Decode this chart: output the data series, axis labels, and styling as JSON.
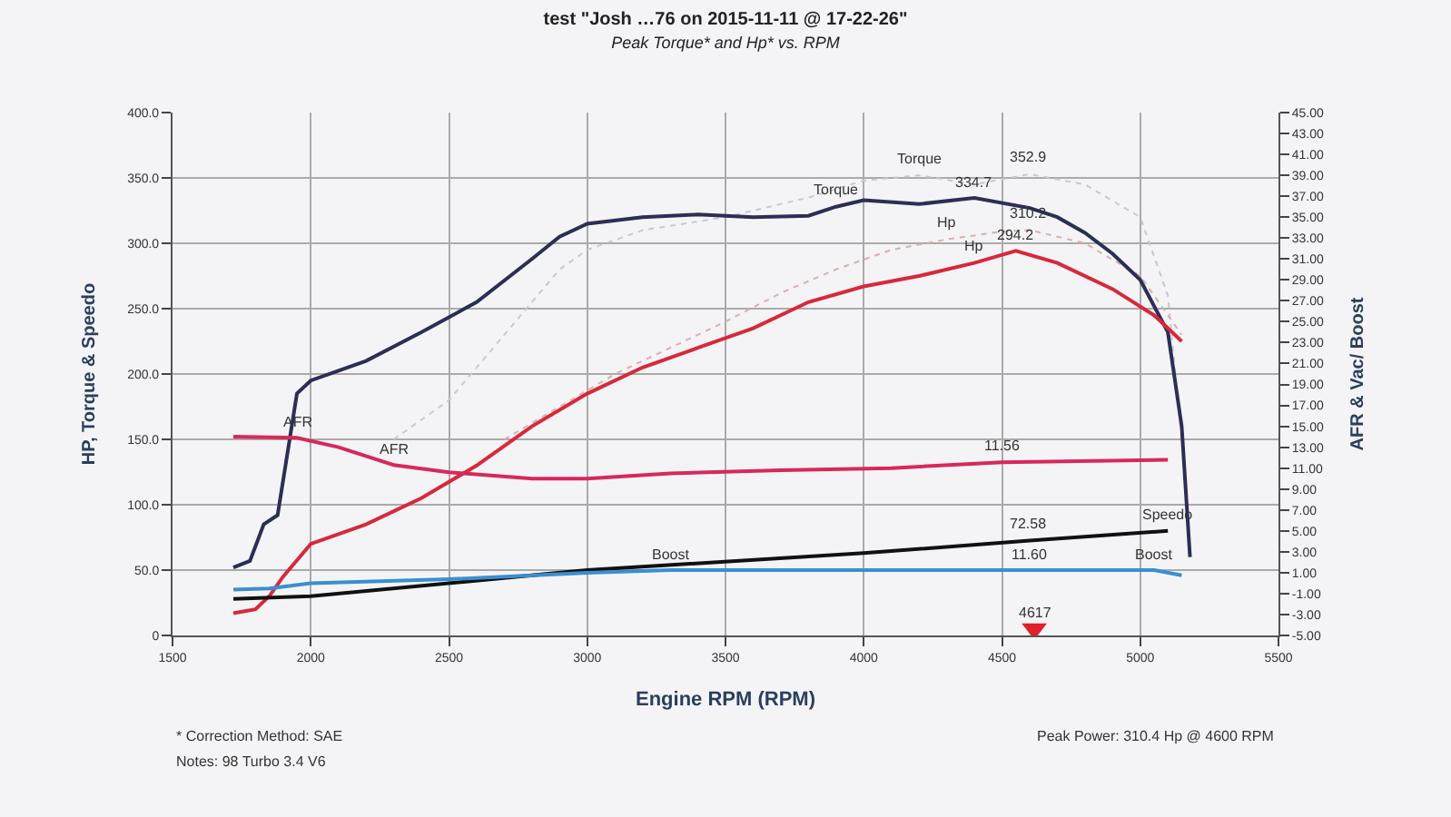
{
  "chart_data": {
    "type": "line",
    "title": "test \"Josh …76 on 2015-11-11 @ 17-22-26\"",
    "subtitle": "Peak Torque* and Hp* vs. RPM",
    "xlabel": "Engine RPM (RPM)",
    "ylabel": "HP, Torque & Speedo",
    "y2label": "AFR & Vac/ Boost",
    "xlim": [
      1500,
      5500
    ],
    "xticks": [
      1500,
      2000,
      2500,
      3000,
      3500,
      4000,
      4500,
      5000,
      5500
    ],
    "ylim": [
      0,
      400
    ],
    "yticks": [
      {
        "value": 0,
        "label": "0"
      },
      {
        "value": 50,
        "label": "50.0"
      },
      {
        "value": 100,
        "label": "100.0"
      },
      {
        "value": 150,
        "label": "150.0"
      },
      {
        "value": 200,
        "label": "200.0"
      },
      {
        "value": 250,
        "label": "250.0"
      },
      {
        "value": 300,
        "label": "300.0"
      },
      {
        "value": 350,
        "label": "350.0"
      },
      {
        "value": 400,
        "label": "400.0"
      }
    ],
    "y2lim": [
      -5,
      45
    ],
    "y2ticks": [
      {
        "value": -5,
        "label": "-5.00"
      },
      {
        "value": -3,
        "label": "-3.00"
      },
      {
        "value": -1,
        "label": "-1.00"
      },
      {
        "value": 1,
        "label": "1.00"
      },
      {
        "value": 3,
        "label": "3.00"
      },
      {
        "value": 5,
        "label": "5.00"
      },
      {
        "value": 7,
        "label": "7.00"
      },
      {
        "value": 9,
        "label": "9.00"
      },
      {
        "value": 11,
        "label": "11.00"
      },
      {
        "value": 13,
        "label": "13.00"
      },
      {
        "value": 15,
        "label": "15.00"
      },
      {
        "value": 17,
        "label": "17.00"
      },
      {
        "value": 19,
        "label": "19.00"
      },
      {
        "value": 21,
        "label": "21.00"
      },
      {
        "value": 23,
        "label": "23.00"
      },
      {
        "value": 25,
        "label": "25.00"
      },
      {
        "value": 27,
        "label": "27.00"
      },
      {
        "value": 29,
        "label": "29.00"
      },
      {
        "value": 31,
        "label": "31.00"
      },
      {
        "value": 33,
        "label": "33.00"
      },
      {
        "value": 35,
        "label": "35.00"
      },
      {
        "value": 37,
        "label": "37.00"
      },
      {
        "value": 39,
        "label": "39.00"
      },
      {
        "value": 41,
        "label": "41.00"
      },
      {
        "value": 43,
        "label": "43.00"
      },
      {
        "value": 45,
        "label": "45.00"
      }
    ],
    "grid": true,
    "line_style": "solid",
    "series": [
      {
        "color": "#c8c8d0",
        "line_style": "dotted",
        "x": [
          2300,
          2500,
          2700,
          2900,
          3000,
          3200,
          3500,
          3800,
          4000,
          4200,
          4400,
          4600,
          4800,
          5000,
          5100,
          5150
        ],
        "values": [
          150,
          180,
          230,
          280,
          295,
          310,
          320,
          335,
          348,
          352,
          345,
          352.9,
          345,
          320,
          260,
          150
        ]
      },
      {
        "color": "#d8b0b0",
        "line_style": "dotted",
        "x": [
          2700,
          2900,
          3100,
          3300,
          3500,
          3700,
          3900,
          4100,
          4300,
          4500,
          4600,
          4800,
          5000,
          5150
        ],
        "values": [
          150,
          175,
          200,
          220,
          240,
          262,
          280,
          295,
          303,
          309,
          310.2,
          300,
          275,
          230
        ]
      },
      {
        "color": "#2a2f55",
        "x": [
          1720,
          1780,
          1830,
          1880,
          1950,
          2000,
          2200,
          2400,
          2600,
          2800,
          2900,
          3000,
          3200,
          3400,
          3600,
          3800,
          3900,
          4000,
          4200,
          4400,
          4600,
          4700,
          4800,
          4900,
          5000,
          5100,
          5150,
          5180
        ],
        "values": [
          52,
          57,
          85,
          92,
          185,
          195,
          210,
          232,
          255,
          288,
          305,
          315,
          320,
          322,
          320,
          321,
          328,
          333,
          330,
          334.7,
          327,
          320,
          308,
          292,
          272,
          232,
          160,
          60
        ]
      },
      {
        "color": "#d8283c",
        "x": [
          1720,
          1800,
          1850,
          1900,
          2000,
          2200,
          2400,
          2600,
          2800,
          3000,
          3200,
          3400,
          3600,
          3800,
          4000,
          4200,
          4400,
          4550,
          4700,
          4900,
          5050,
          5150
        ],
        "values": [
          17,
          20,
          30,
          45,
          70,
          85,
          105,
          130,
          160,
          185,
          205,
          220,
          235,
          255,
          267,
          275,
          285,
          294.2,
          285,
          265,
          245,
          225
        ]
      },
      {
        "color": "#d8285a",
        "axis": "y2",
        "x": [
          1720,
          1950,
          2100,
          2300,
          2500,
          2800,
          3000,
          3300,
          3700,
          4100,
          4500,
          5100
        ],
        "values": [
          14.0,
          13.9,
          13.0,
          11.3,
          10.6,
          10.0,
          10.0,
          10.5,
          10.8,
          11.0,
          11.56,
          11.8
        ]
      },
      {
        "color": "#111111",
        "x": [
          1720,
          2000,
          3000,
          4000,
          4600,
          5100
        ],
        "values": [
          28,
          30,
          50,
          63,
          72.58,
          80
        ]
      },
      {
        "color": "#3a8fd0",
        "x": [
          1720,
          1850,
          2000,
          2500,
          3000,
          3300,
          4000,
          4600,
          5050,
          5150
        ],
        "values": [
          35,
          36,
          40,
          43,
          48,
          50,
          50,
          50,
          50,
          46
        ]
      },
      {
        "type": "scatter",
        "marker": "triangle",
        "color": "#e0202a",
        "x": [
          4617
        ],
        "values": [
          5
        ]
      }
    ],
    "annotations": [
      {
        "text": "Torque",
        "x": 4200,
        "y": 352
      },
      {
        "text": "352.9",
        "x": 4600,
        "y": 352.9
      },
      {
        "text": "Torque",
        "x": 3900,
        "y": 328
      },
      {
        "text": "334.7",
        "x": 4400,
        "y": 334.7
      },
      {
        "text": "Hp",
        "x": 4300,
        "y": 303
      },
      {
        "text": "310.2",
        "x": 4600,
        "y": 310.2
      },
      {
        "text": "Hp",
        "x": 4400,
        "y": 285
      },
      {
        "text": "294.2",
        "x": 4550,
        "y": 294.2
      },
      {
        "text": "AFR",
        "x": 1950,
        "y": 151.2
      },
      {
        "text": "AFR",
        "x": 2300,
        "y": 130.4
      },
      {
        "text": "11.56",
        "x": 4500,
        "y": 132.48
      },
      {
        "text": "Speedo",
        "x": 5100,
        "y": 80
      },
      {
        "text": "72.58",
        "x": 4600,
        "y": 72.58
      },
      {
        "text": "Boost",
        "x": 3300,
        "y": 50
      },
      {
        "text": "11.60",
        "x": 4600,
        "y": 50
      },
      {
        "text": "Boost",
        "x": 5050,
        "y": 50
      },
      {
        "text": "4617",
        "x": 4617,
        "y": 5
      },
      "* Correction Method: SAE",
      "Notes: 98 Turbo 3.4 V6",
      "Peak Power: 310.4 Hp @ 4600 RPM"
    ]
  }
}
